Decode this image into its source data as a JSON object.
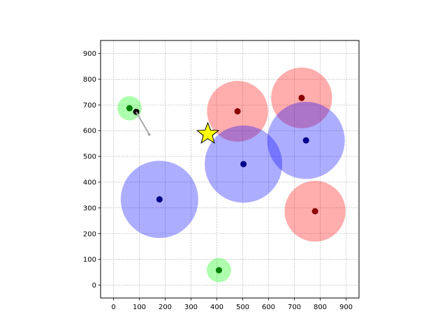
{
  "chart_data": {
    "type": "scatter",
    "title": "",
    "xlabel": "",
    "ylabel": "",
    "xlim": [
      -50,
      950
    ],
    "ylim": [
      -50,
      950
    ],
    "xticks": [
      0,
      100,
      200,
      300,
      400,
      500,
      600,
      700,
      800,
      900
    ],
    "yticks": [
      0,
      100,
      200,
      300,
      400,
      500,
      600,
      700,
      800,
      900
    ],
    "grid": true,
    "colors": {
      "green_fill": "#00ff00",
      "green_point": "#008000",
      "red_fill": "#ff0000",
      "red_point": "#8b0000",
      "blue_fill": "#0000ff",
      "blue_point": "#00008b",
      "agent_point": "#000000",
      "trail": "#aaaaaa",
      "star_fill": "#ffff00"
    },
    "circles": [
      {
        "group": "green",
        "x": 62,
        "y": 687,
        "r": 47
      },
      {
        "group": "green",
        "x": 408,
        "y": 58,
        "r": 47
      },
      {
        "group": "red",
        "x": 480,
        "y": 675,
        "r": 118
      },
      {
        "group": "red",
        "x": 728,
        "y": 727,
        "r": 118
      },
      {
        "group": "red",
        "x": 780,
        "y": 287,
        "r": 118
      },
      {
        "group": "blue",
        "x": 178,
        "y": 333,
        "r": 150
      },
      {
        "group": "blue",
        "x": 503,
        "y": 470,
        "r": 150
      },
      {
        "group": "blue",
        "x": 745,
        "y": 562,
        "r": 150
      }
    ],
    "agent": {
      "x": 88,
      "y": 673
    },
    "trail": [
      [
        88,
        673
      ],
      [
        138,
        585
      ]
    ],
    "star": {
      "x": 365,
      "y": 587
    }
  }
}
